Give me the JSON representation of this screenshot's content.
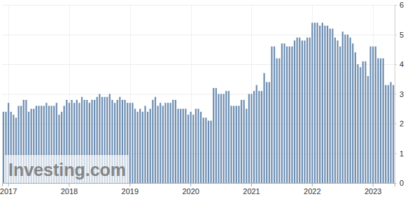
{
  "chart_data": {
    "type": "bar",
    "categories": [
      null,
      null,
      "2017",
      null,
      null,
      null,
      null,
      null,
      null,
      null,
      null,
      null,
      null,
      null,
      null,
      null,
      null,
      null,
      null,
      null,
      null,
      null,
      null,
      null,
      null,
      null,
      "2018",
      null,
      null,
      null,
      null,
      null,
      null,
      null,
      null,
      null,
      null,
      null,
      null,
      null,
      null,
      null,
      null,
      null,
      null,
      null,
      null,
      null,
      null,
      null,
      "2019",
      null,
      null,
      null,
      null,
      null,
      null,
      null,
      null,
      null,
      null,
      null,
      null,
      null,
      null,
      null,
      null,
      null,
      null,
      null,
      null,
      null,
      null,
      null,
      "2020",
      null,
      null,
      null,
      null,
      null,
      null,
      null,
      null,
      null,
      null,
      null,
      null,
      null,
      null,
      null,
      null,
      null,
      null,
      null,
      null,
      null,
      null,
      null,
      "2021",
      null,
      null,
      null,
      null,
      null,
      null,
      null,
      null,
      null,
      null,
      null,
      null,
      null,
      null,
      null,
      null,
      null,
      null,
      null,
      null,
      null,
      null,
      null,
      "2022",
      null,
      null,
      null,
      null,
      null,
      null,
      null,
      null,
      null,
      null,
      null,
      null,
      null,
      null,
      null,
      null,
      null,
      null,
      null,
      null,
      null,
      null,
      null,
      "2023",
      null,
      null,
      null,
      null,
      null,
      null,
      null,
      null
    ],
    "values": [
      2.4,
      2.4,
      2.7,
      2.4,
      2.3,
      2.2,
      2.6,
      2.6,
      2.8,
      2.8,
      2.4,
      2.5,
      2.5,
      2.6,
      2.6,
      2.6,
      2.6,
      2.7,
      2.6,
      2.6,
      2.6,
      2.7,
      2.3,
      2.4,
      2.6,
      2.8,
      2.7,
      2.8,
      2.7,
      2.8,
      2.7,
      2.9,
      2.8,
      2.8,
      2.7,
      2.8,
      2.8,
      2.9,
      3.0,
      2.9,
      2.9,
      2.9,
      3.0,
      2.8,
      2.7,
      2.8,
      2.9,
      2.8,
      2.8,
      2.7,
      2.7,
      2.7,
      2.5,
      2.4,
      2.5,
      2.4,
      2.6,
      2.4,
      2.5,
      2.8,
      2.9,
      2.6,
      2.7,
      2.6,
      2.7,
      2.7,
      2.7,
      2.8,
      2.8,
      2.5,
      2.5,
      2.5,
      2.5,
      2.3,
      2.4,
      2.3,
      2.5,
      2.5,
      2.4,
      2.2,
      2.2,
      2.1,
      2.1,
      3.2,
      3.2,
      3.0,
      3.0,
      3.0,
      3.1,
      3.1,
      2.6,
      2.6,
      2.6,
      2.6,
      2.8,
      2.8,
      2.5,
      3.0,
      3.0,
      3.1,
      3.3,
      3.1,
      3.1,
      3.7,
      3.4,
      3.4,
      4.6,
      4.6,
      4.2,
      4.2,
      4.7,
      4.7,
      4.6,
      4.6,
      4.6,
      4.8,
      4.9,
      4.9,
      4.8,
      4.8,
      4.9,
      4.9,
      5.4,
      5.4,
      5.4,
      5.3,
      5.4,
      5.3,
      5.3,
      5.2,
      5.2,
      4.9,
      4.8,
      4.6,
      5.1,
      5.0,
      5.0,
      4.9,
      4.7,
      4.4,
      4.0,
      3.9,
      4.1,
      4.1,
      3.6,
      4.6,
      4.6,
      4.6,
      4.2,
      4.2,
      4.2,
      3.3,
      3.3,
      3.4,
      3.3
    ],
    "color": "#6f8fb3",
    "ylim": [
      0,
      6
    ],
    "yticks": [
      0,
      1,
      2,
      3,
      4,
      5,
      6
    ],
    "grid": true,
    "annotations": [
      "Investing.com"
    ]
  }
}
